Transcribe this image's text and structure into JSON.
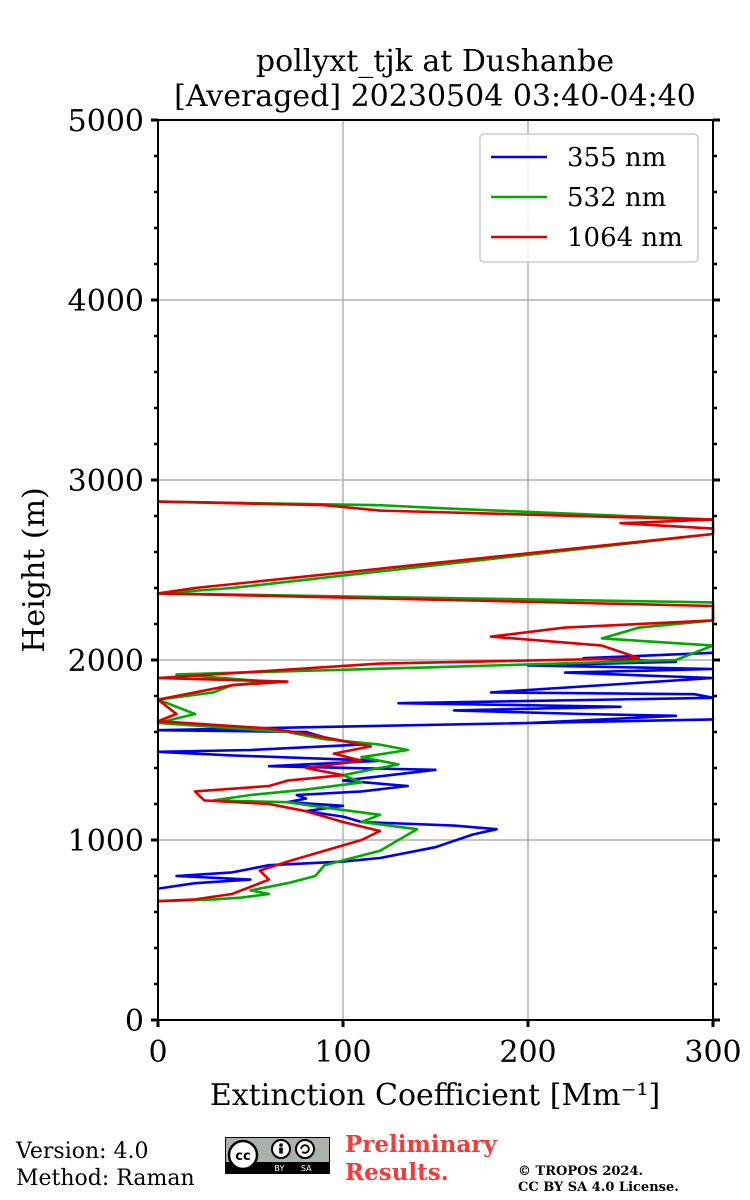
{
  "chart_data": {
    "type": "line",
    "title_line1": "pollyxt_tjk at Dushanbe",
    "title_line2": "[Averaged] 20230504 03:40-04:40",
    "xlabel": "Extinction Coefficient [Mm⁻¹]",
    "ylabel": "Height (m)",
    "xlim": [
      0,
      300
    ],
    "ylim": [
      0,
      5000
    ],
    "xticks": [
      0,
      100,
      200,
      300
    ],
    "yticks": [
      0,
      1000,
      2000,
      3000,
      4000,
      5000
    ],
    "grid": true,
    "legend_position": "top-right",
    "series": [
      {
        "name": "355 nm",
        "color": "#0000ee",
        "points": [
          [
            0,
            730
          ],
          [
            20,
            760
          ],
          [
            50,
            780
          ],
          [
            10,
            800
          ],
          [
            40,
            820
          ],
          [
            60,
            860
          ],
          [
            100,
            880
          ],
          [
            120,
            900
          ],
          [
            150,
            960
          ],
          [
            170,
            1030
          ],
          [
            183,
            1060
          ],
          [
            160,
            1080
          ],
          [
            110,
            1100
          ],
          [
            100,
            1130
          ],
          [
            80,
            1160
          ],
          [
            100,
            1190
          ],
          [
            70,
            1210
          ],
          [
            80,
            1230
          ],
          [
            75,
            1250
          ],
          [
            110,
            1270
          ],
          [
            135,
            1300
          ],
          [
            100,
            1330
          ],
          [
            150,
            1390
          ],
          [
            60,
            1410
          ],
          [
            120,
            1440
          ],
          [
            40,
            1470
          ],
          [
            0,
            1490
          ],
          [
            50,
            1500
          ],
          [
            110,
            1530
          ],
          [
            90,
            1570
          ],
          [
            80,
            1600
          ],
          [
            0,
            1610
          ],
          [
            300,
            1670
          ],
          [
            200,
            1650
          ],
          [
            280,
            1690
          ],
          [
            230,
            1700
          ],
          [
            160,
            1720
          ],
          [
            250,
            1740
          ],
          [
            130,
            1760
          ],
          [
            300,
            1790
          ],
          [
            290,
            1810
          ],
          [
            180,
            1820
          ],
          [
            300,
            1900
          ],
          [
            220,
            1930
          ],
          [
            300,
            1950
          ],
          [
            200,
            1970
          ],
          [
            280,
            1990
          ],
          [
            230,
            2010
          ],
          [
            300,
            2040
          ]
        ]
      },
      {
        "name": "532 nm",
        "color": "#00aa00",
        "points": [
          [
            0,
            660
          ],
          [
            30,
            670
          ],
          [
            45,
            680
          ],
          [
            60,
            700
          ],
          [
            50,
            720
          ],
          [
            70,
            760
          ],
          [
            85,
            800
          ],
          [
            90,
            860
          ],
          [
            120,
            940
          ],
          [
            130,
            1000
          ],
          [
            140,
            1060
          ],
          [
            110,
            1100
          ],
          [
            120,
            1140
          ],
          [
            90,
            1180
          ],
          [
            70,
            1210
          ],
          [
            30,
            1220
          ],
          [
            50,
            1250
          ],
          [
            80,
            1280
          ],
          [
            110,
            1320
          ],
          [
            100,
            1360
          ],
          [
            130,
            1420
          ],
          [
            110,
            1460
          ],
          [
            135,
            1500
          ],
          [
            120,
            1530
          ],
          [
            90,
            1560
          ],
          [
            70,
            1600
          ],
          [
            0,
            1650
          ],
          [
            20,
            1700
          ],
          [
            0,
            1780
          ],
          [
            30,
            1820
          ],
          [
            40,
            1860
          ],
          [
            60,
            1880
          ],
          [
            10,
            1920
          ],
          [
            150,
            1960
          ],
          [
            280,
            2000
          ],
          [
            300,
            2080
          ],
          [
            240,
            2120
          ],
          [
            260,
            2180
          ],
          [
            300,
            2220
          ],
          [
            300,
            2320
          ],
          [
            0,
            2370
          ],
          [
            40,
            2400
          ],
          [
            300,
            2700
          ],
          [
            300,
            2730
          ],
          [
            300,
            2760
          ],
          [
            300,
            2780
          ],
          [
            160,
            2840
          ],
          [
            120,
            2860
          ],
          [
            0,
            2880
          ]
        ]
      },
      {
        "name": "1064 nm",
        "color": "#dd0000",
        "points": [
          [
            0,
            660
          ],
          [
            20,
            670
          ],
          [
            40,
            700
          ],
          [
            50,
            740
          ],
          [
            60,
            780
          ],
          [
            55,
            830
          ],
          [
            70,
            880
          ],
          [
            90,
            940
          ],
          [
            110,
            1000
          ],
          [
            120,
            1050
          ],
          [
            100,
            1100
          ],
          [
            80,
            1160
          ],
          [
            60,
            1200
          ],
          [
            25,
            1220
          ],
          [
            20,
            1270
          ],
          [
            60,
            1300
          ],
          [
            70,
            1330
          ],
          [
            100,
            1360
          ],
          [
            80,
            1400
          ],
          [
            110,
            1440
          ],
          [
            95,
            1480
          ],
          [
            115,
            1520
          ],
          [
            100,
            1550
          ],
          [
            80,
            1590
          ],
          [
            60,
            1620
          ],
          [
            0,
            1660
          ],
          [
            10,
            1700
          ],
          [
            0,
            1780
          ],
          [
            20,
            1820
          ],
          [
            40,
            1860
          ],
          [
            70,
            1880
          ],
          [
            0,
            1900
          ],
          [
            120,
            1980
          ],
          [
            260,
            2010
          ],
          [
            240,
            2080
          ],
          [
            180,
            2130
          ],
          [
            220,
            2180
          ],
          [
            300,
            2220
          ],
          [
            300,
            2300
          ],
          [
            0,
            2370
          ],
          [
            20,
            2400
          ],
          [
            300,
            2700
          ],
          [
            300,
            2730
          ],
          [
            250,
            2760
          ],
          [
            300,
            2780
          ],
          [
            120,
            2830
          ],
          [
            90,
            2860
          ],
          [
            0,
            2880
          ]
        ]
      }
    ]
  },
  "footer": {
    "version": "Version: 4.0",
    "method": "Method: Raman",
    "preliminary_line1": "Preliminary",
    "preliminary_line2": "Results.",
    "copyright_line1": "© TROPOS 2024.",
    "copyright_line2": "CC BY SA 4.0 License.",
    "cc_badge": "BY SA",
    "cc_text": "cc"
  }
}
